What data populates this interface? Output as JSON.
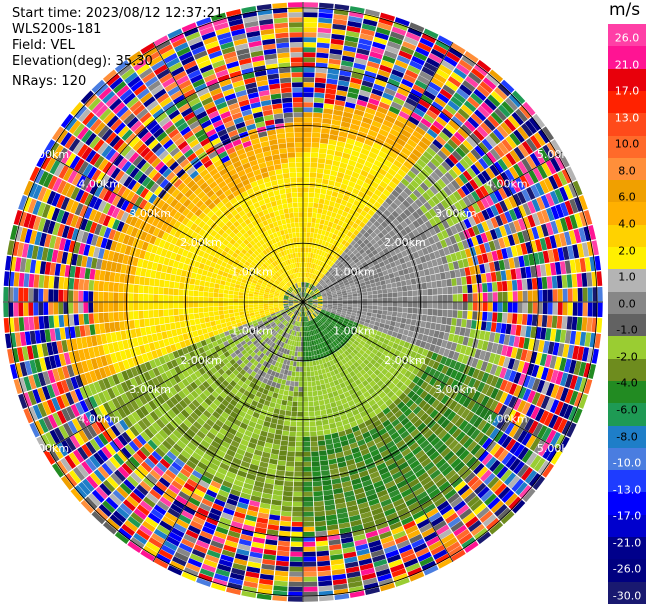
{
  "info": {
    "start_time": "Start time: 2023/08/12 12:37:21",
    "instrument": "WLS200s-181",
    "field": "Field: VEL",
    "elevation": "Elevation(deg): 35.30",
    "nrays": "NRays: 120"
  },
  "colorbar": {
    "title": "m/s",
    "labels": [
      "26.0",
      "21.0",
      "17.0",
      "13.0",
      "10.0",
      "8.0",
      "6.0",
      "4.0",
      "2.0",
      "1.0",
      "0.0",
      "-1.0",
      "-2.0",
      "-4.0",
      "-6.0",
      "-8.0",
      "-10.0",
      "-13.0",
      "-17.0",
      "-21.0",
      "-26.0",
      "-30.0"
    ],
    "colors": [
      "#ff3fa6",
      "#ff1493",
      "#e8000b",
      "#ff2200",
      "#ff4a1a",
      "#ff6a2a",
      "#ff8f3a",
      "#f0a000",
      "#ffb000",
      "#ffd200",
      "#fff000",
      "#b4b4b4",
      "#878787",
      "#626262",
      "#9acd32",
      "#6e8c1e",
      "#228b22",
      "#1e9a54",
      "#1e7ec8",
      "#4a7de0",
      "#1e3cff",
      "#0000ff",
      "#0000cd",
      "#00008b",
      "#000080",
      "#191970"
    ]
  },
  "chart_data": {
    "type": "ppi",
    "field": "VEL",
    "units": "m/s",
    "nrays": 120,
    "elevation_deg": 35.3,
    "value_range": [
      -30.0,
      26.0
    ],
    "range_rings_km": [
      1.0,
      2.0,
      3.0,
      4.0,
      5.0
    ],
    "ring_labels": [
      "1.00km",
      "2.00km",
      "3.00km",
      "4.00km",
      "5.00km"
    ],
    "max_range_km": 5.1,
    "spokes_deg": [
      0,
      30,
      60,
      90,
      120,
      150,
      180,
      210,
      240,
      270,
      300,
      330
    ]
  }
}
